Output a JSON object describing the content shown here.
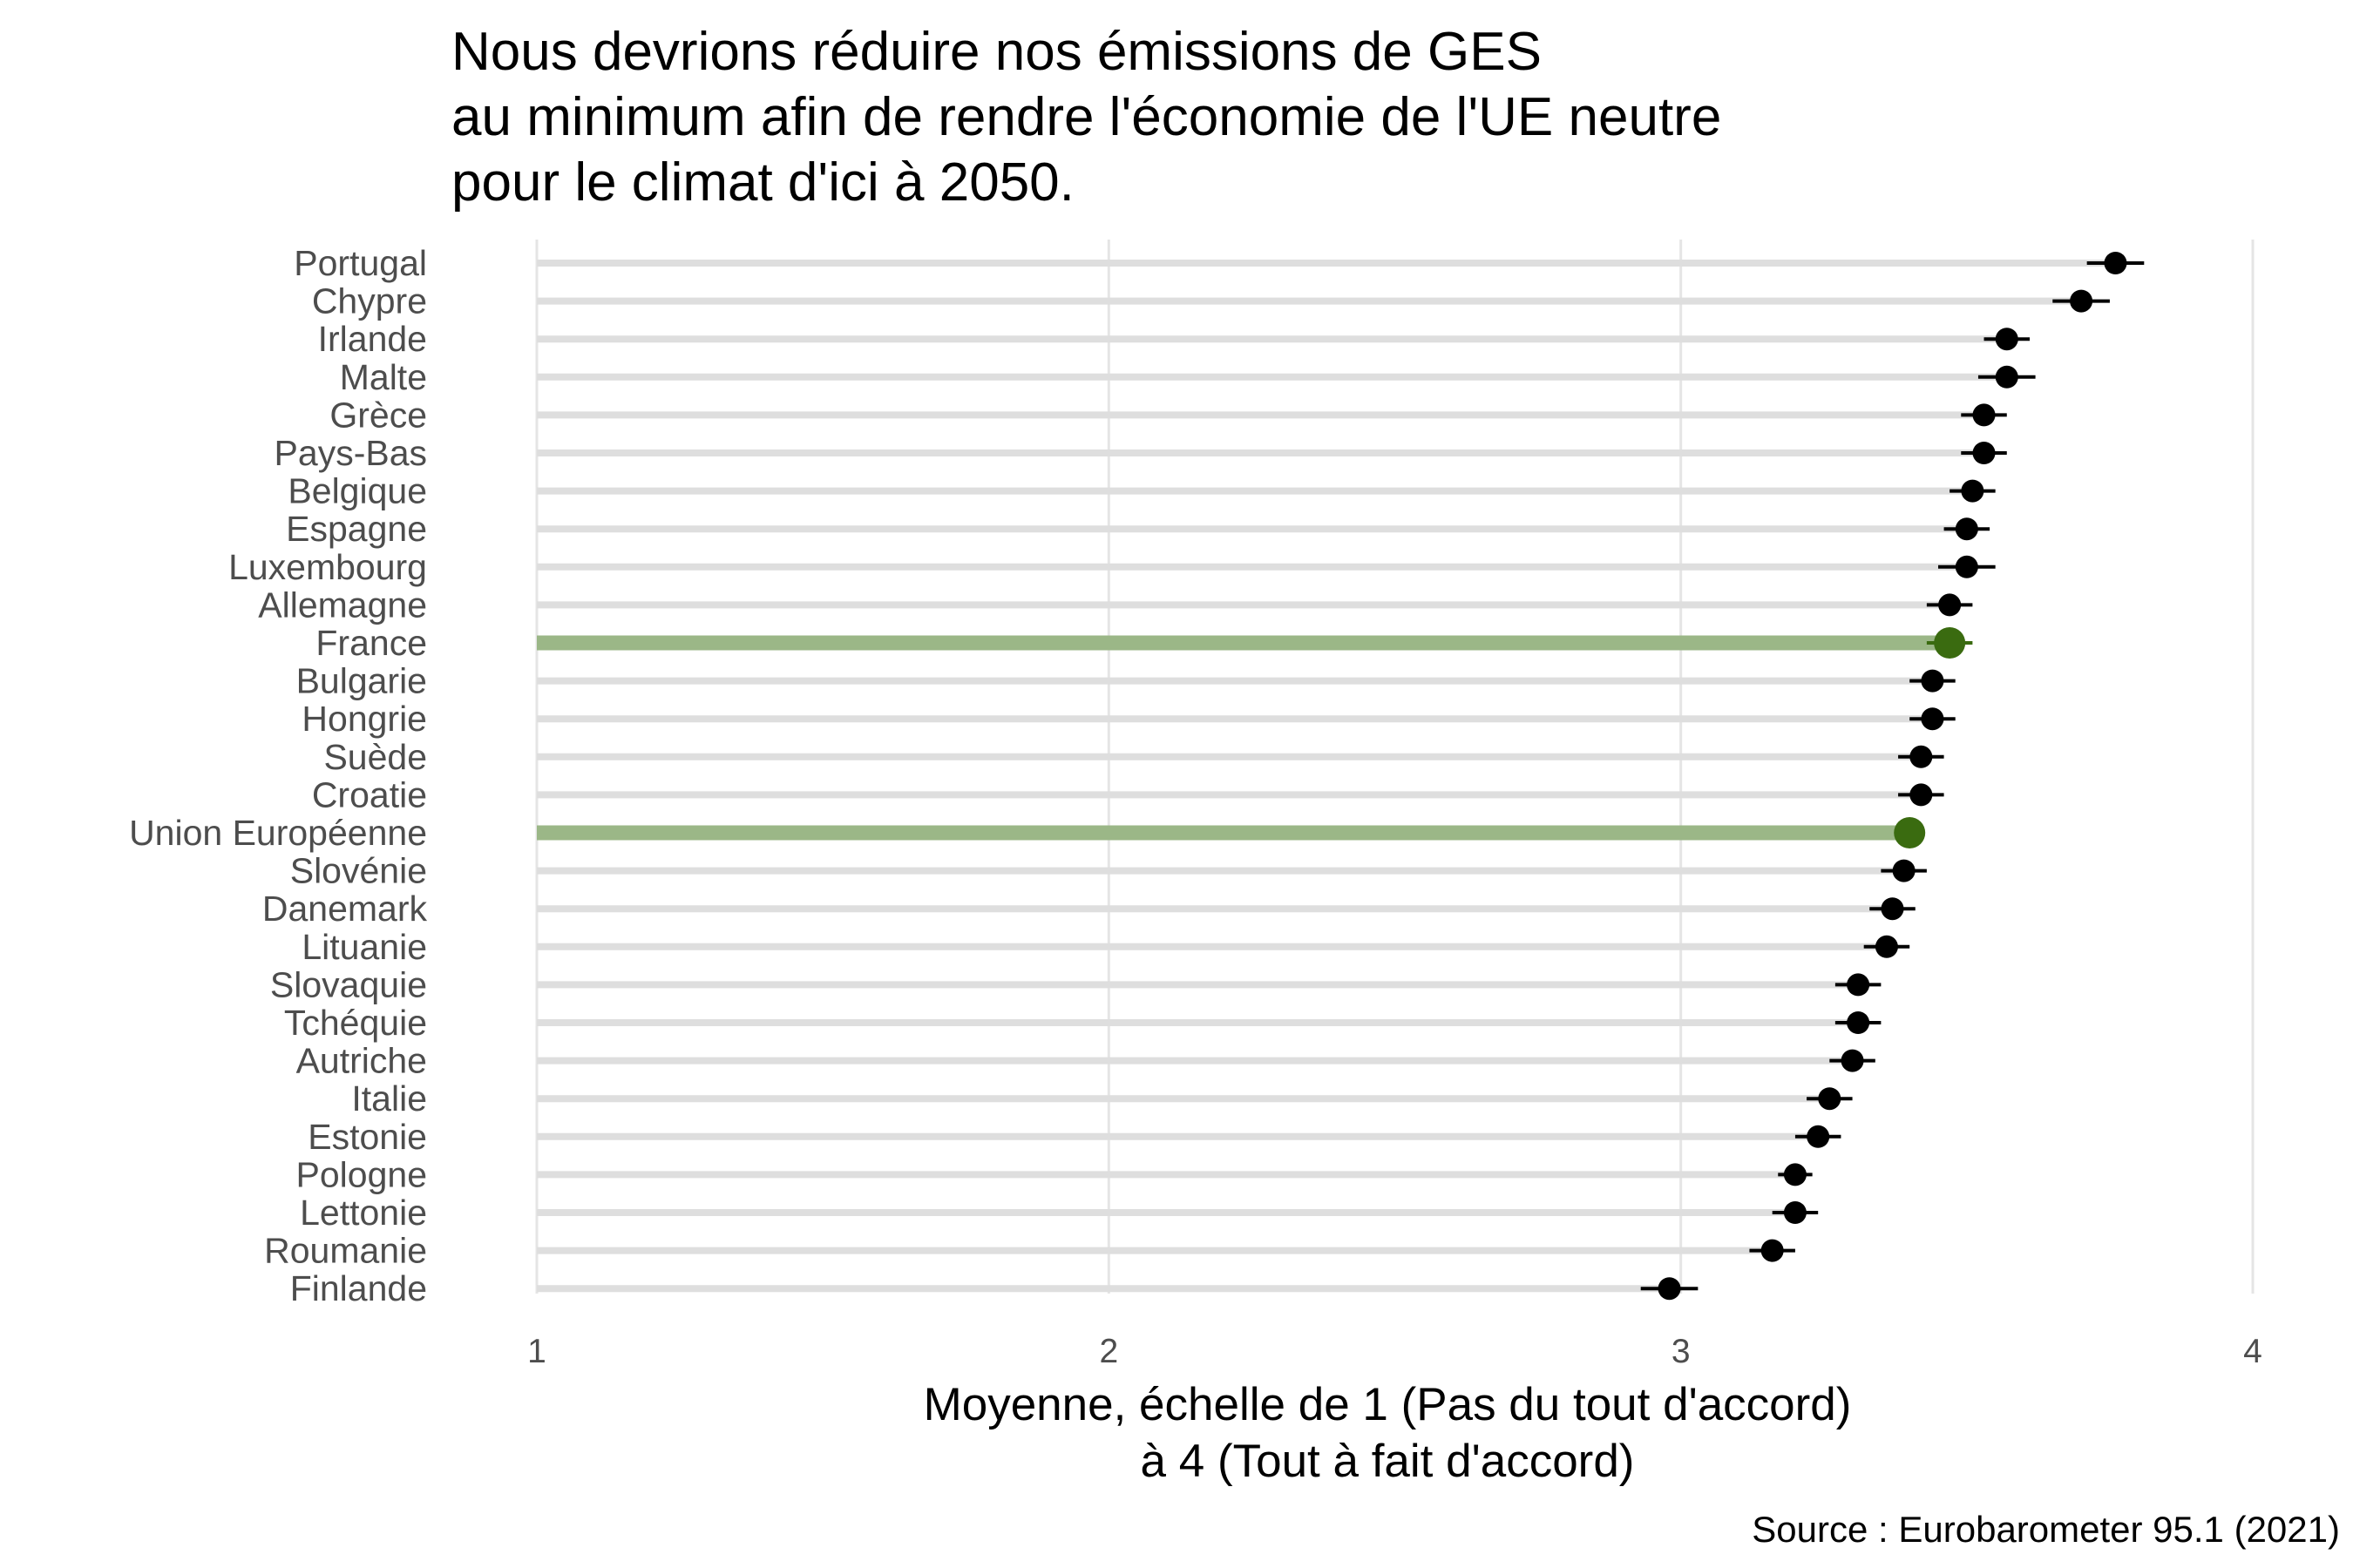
{
  "chart_data": {
    "type": "lollipop",
    "title_lines": [
      "Nous devrions réduire nos émissions de GES",
      " au minimum afin de rendre l'économie de l'UE neutre",
      " pour le climat d'ici à 2050."
    ],
    "xlabel_lines": [
      "Moyenne, échelle de 1 (Pas du tout d'accord)",
      "à 4 (Tout à fait d'accord)"
    ],
    "source": "Source : Eurobarometer 95.1 (2021)",
    "xlim": [
      1,
      4
    ],
    "xticks": [
      1,
      2,
      3,
      4
    ],
    "grid": true,
    "colors": {
      "default_bar": "#dedede",
      "default_point": "#000000",
      "highlight_bar": "#9bb787",
      "highlight_point": "#3a6b10",
      "grid": "#e5e5e5"
    },
    "rows": [
      {
        "label": "Portugal",
        "value": 3.76,
        "ci": [
          3.71,
          3.81
        ],
        "highlight": false
      },
      {
        "label": "Chypre",
        "value": 3.7,
        "ci": [
          3.65,
          3.75
        ],
        "highlight": false
      },
      {
        "label": "Irlande",
        "value": 3.57,
        "ci": [
          3.53,
          3.61
        ],
        "highlight": false
      },
      {
        "label": "Malte",
        "value": 3.57,
        "ci": [
          3.52,
          3.62
        ],
        "highlight": false
      },
      {
        "label": "Grèce",
        "value": 3.53,
        "ci": [
          3.49,
          3.57
        ],
        "highlight": false
      },
      {
        "label": "Pays-Bas",
        "value": 3.53,
        "ci": [
          3.49,
          3.57
        ],
        "highlight": false
      },
      {
        "label": "Belgique",
        "value": 3.51,
        "ci": [
          3.47,
          3.55
        ],
        "highlight": false
      },
      {
        "label": "Espagne",
        "value": 3.5,
        "ci": [
          3.46,
          3.54
        ],
        "highlight": false
      },
      {
        "label": "Luxembourg",
        "value": 3.5,
        "ci": [
          3.45,
          3.55
        ],
        "highlight": false
      },
      {
        "label": "Allemagne",
        "value": 3.47,
        "ci": [
          3.43,
          3.51
        ],
        "highlight": false
      },
      {
        "label": "France",
        "value": 3.47,
        "ci": [
          3.43,
          3.51
        ],
        "highlight": true
      },
      {
        "label": "Bulgarie",
        "value": 3.44,
        "ci": [
          3.4,
          3.48
        ],
        "highlight": false
      },
      {
        "label": "Hongrie",
        "value": 3.44,
        "ci": [
          3.4,
          3.48
        ],
        "highlight": false
      },
      {
        "label": "Suède",
        "value": 3.42,
        "ci": [
          3.38,
          3.46
        ],
        "highlight": false
      },
      {
        "label": "Croatie",
        "value": 3.42,
        "ci": [
          3.38,
          3.46
        ],
        "highlight": false
      },
      {
        "label": "Union Européenne",
        "value": 3.4,
        "ci": [
          3.39,
          3.41
        ],
        "highlight": true
      },
      {
        "label": "Slovénie",
        "value": 3.39,
        "ci": [
          3.35,
          3.43
        ],
        "highlight": false
      },
      {
        "label": "Danemark",
        "value": 3.37,
        "ci": [
          3.33,
          3.41
        ],
        "highlight": false
      },
      {
        "label": "Lituanie",
        "value": 3.36,
        "ci": [
          3.32,
          3.4
        ],
        "highlight": false
      },
      {
        "label": "Slovaquie",
        "value": 3.31,
        "ci": [
          3.27,
          3.35
        ],
        "highlight": false
      },
      {
        "label": "Tchéquie",
        "value": 3.31,
        "ci": [
          3.27,
          3.35
        ],
        "highlight": false
      },
      {
        "label": "Autriche",
        "value": 3.3,
        "ci": [
          3.26,
          3.34
        ],
        "highlight": false
      },
      {
        "label": "Italie",
        "value": 3.26,
        "ci": [
          3.22,
          3.3
        ],
        "highlight": false
      },
      {
        "label": "Estonie",
        "value": 3.24,
        "ci": [
          3.2,
          3.28
        ],
        "highlight": false
      },
      {
        "label": "Pologne",
        "value": 3.2,
        "ci": [
          3.17,
          3.23
        ],
        "highlight": false
      },
      {
        "label": "Lettonie",
        "value": 3.2,
        "ci": [
          3.16,
          3.24
        ],
        "highlight": false
      },
      {
        "label": "Roumanie",
        "value": 3.16,
        "ci": [
          3.12,
          3.2
        ],
        "highlight": false
      },
      {
        "label": "Finlande",
        "value": 2.98,
        "ci": [
          2.93,
          3.03
        ],
        "highlight": false
      }
    ]
  }
}
